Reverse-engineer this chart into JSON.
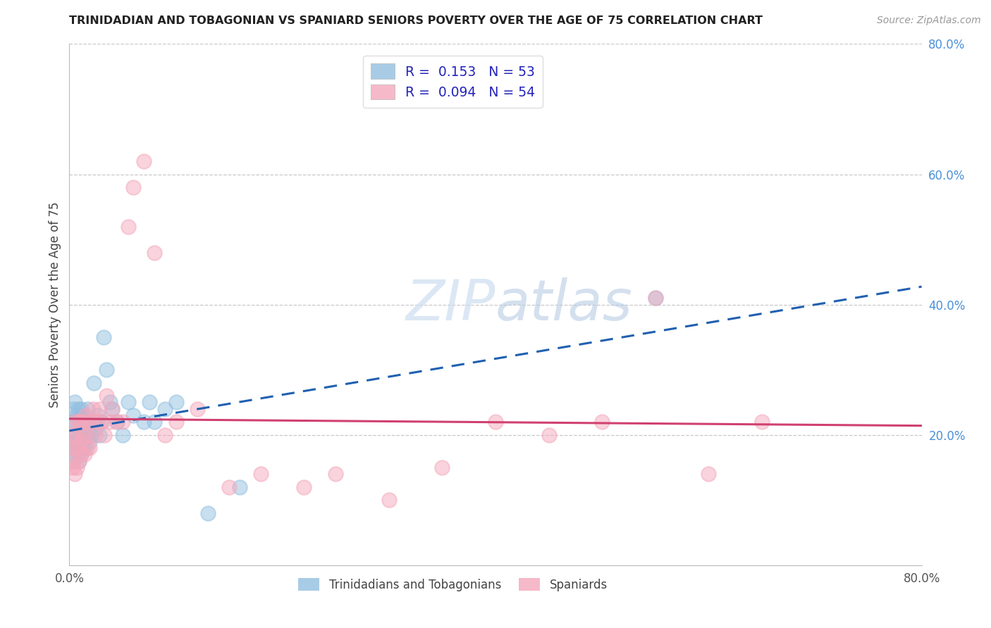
{
  "title": "TRINIDADIAN AND TOBAGONIAN VS SPANIARD SENIORS POVERTY OVER THE AGE OF 75 CORRELATION CHART",
  "source": "Source: ZipAtlas.com",
  "ylabel": "Seniors Poverty Over the Age of 75",
  "x_tick_positions": [
    0.0,
    0.8
  ],
  "x_tick_labels": [
    "0.0%",
    "80.0%"
  ],
  "y_tick_right_positions": [
    0.2,
    0.4,
    0.6,
    0.8
  ],
  "y_tick_right_labels": [
    "20.0%",
    "40.0%",
    "60.0%",
    "80.0%"
  ],
  "legend_label1": "R =  0.153   N = 53",
  "legend_label2": "R =  0.094   N = 54",
  "trini_color": "#92c0e0",
  "span_color": "#f4a8bc",
  "trini_line_color": "#2060b0",
  "span_line_color": "#d04070",
  "background_color": "#ffffff",
  "grid_color": "#c8c8c8",
  "watermark_zip_color": "#c5d8f0",
  "watermark_atlas_color": "#b0c8e8",
  "trini_x": [
    0.002,
    0.003,
    0.003,
    0.004,
    0.004,
    0.005,
    0.005,
    0.006,
    0.006,
    0.007,
    0.007,
    0.008,
    0.008,
    0.009,
    0.009,
    0.01,
    0.01,
    0.011,
    0.011,
    0.012,
    0.012,
    0.013,
    0.013,
    0.014,
    0.015,
    0.015,
    0.016,
    0.017,
    0.018,
    0.019,
    0.02,
    0.022,
    0.023,
    0.025,
    0.027,
    0.028,
    0.03,
    0.032,
    0.035,
    0.038,
    0.04,
    0.045,
    0.05,
    0.055,
    0.06,
    0.07,
    0.075,
    0.08,
    0.09,
    0.1,
    0.13,
    0.16,
    0.55
  ],
  "trini_y": [
    0.2,
    0.22,
    0.18,
    0.24,
    0.16,
    0.25,
    0.19,
    0.22,
    0.17,
    0.23,
    0.2,
    0.18,
    0.24,
    0.2,
    0.16,
    0.22,
    0.19,
    0.24,
    0.17,
    0.21,
    0.18,
    0.23,
    0.19,
    0.2,
    0.22,
    0.18,
    0.2,
    0.24,
    0.22,
    0.19,
    0.2,
    0.22,
    0.28,
    0.21,
    0.23,
    0.2,
    0.22,
    0.35,
    0.3,
    0.25,
    0.24,
    0.22,
    0.2,
    0.25,
    0.23,
    0.22,
    0.25,
    0.22,
    0.24,
    0.25,
    0.08,
    0.12,
    0.41
  ],
  "span_x": [
    0.002,
    0.003,
    0.003,
    0.004,
    0.005,
    0.005,
    0.006,
    0.007,
    0.007,
    0.008,
    0.008,
    0.009,
    0.01,
    0.01,
    0.011,
    0.012,
    0.013,
    0.014,
    0.015,
    0.016,
    0.017,
    0.018,
    0.019,
    0.02,
    0.022,
    0.024,
    0.026,
    0.028,
    0.03,
    0.033,
    0.035,
    0.038,
    0.04,
    0.045,
    0.05,
    0.055,
    0.06,
    0.07,
    0.08,
    0.09,
    0.1,
    0.12,
    0.15,
    0.18,
    0.22,
    0.25,
    0.3,
    0.35,
    0.4,
    0.45,
    0.5,
    0.55,
    0.6,
    0.65
  ],
  "span_y": [
    0.18,
    0.15,
    0.2,
    0.16,
    0.22,
    0.14,
    0.18,
    0.2,
    0.15,
    0.18,
    0.22,
    0.16,
    0.19,
    0.22,
    0.17,
    0.2,
    0.22,
    0.17,
    0.23,
    0.2,
    0.18,
    0.22,
    0.18,
    0.22,
    0.24,
    0.2,
    0.22,
    0.24,
    0.22,
    0.2,
    0.26,
    0.22,
    0.24,
    0.22,
    0.22,
    0.52,
    0.58,
    0.62,
    0.48,
    0.2,
    0.22,
    0.24,
    0.12,
    0.14,
    0.12,
    0.14,
    0.1,
    0.15,
    0.22,
    0.2,
    0.22,
    0.41,
    0.14,
    0.22
  ]
}
